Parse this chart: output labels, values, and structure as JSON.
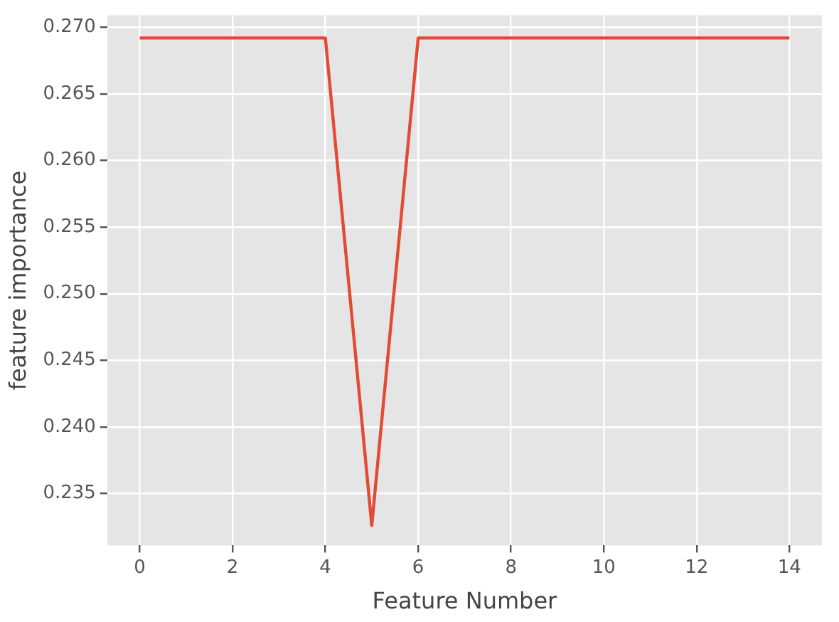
{
  "chart_data": {
    "type": "line",
    "xlabel": "Feature Number",
    "ylabel": "feature importance",
    "x": [
      0,
      1,
      2,
      3,
      4,
      5,
      6,
      7,
      8,
      9,
      10,
      11,
      12,
      13,
      14
    ],
    "series": [
      {
        "color": "#e24a33",
        "values": [
          0.2692,
          0.2692,
          0.2692,
          0.2692,
          0.2692,
          0.2326,
          0.2692,
          0.2692,
          0.2692,
          0.2692,
          0.2692,
          0.2692,
          0.2692,
          0.2692,
          0.2692
        ]
      }
    ],
    "xlim": [
      -0.7,
      14.7
    ],
    "xticks": [
      0,
      2,
      4,
      6,
      8,
      10,
      12,
      14
    ],
    "ylim": [
      0.2311,
      0.2709
    ],
    "yticks": [
      0.235,
      {
        "value": 0.24,
        "label": "0.240"
      },
      0.245,
      {
        "value": 0.25,
        "label": "0.250"
      },
      0.255,
      {
        "value": 0.26,
        "label": "0.260"
      },
      0.265,
      {
        "value": 0.27,
        "label": "0.270"
      }
    ],
    "grid": true,
    "legend": false,
    "marker": "none",
    "line_style": "solid"
  }
}
